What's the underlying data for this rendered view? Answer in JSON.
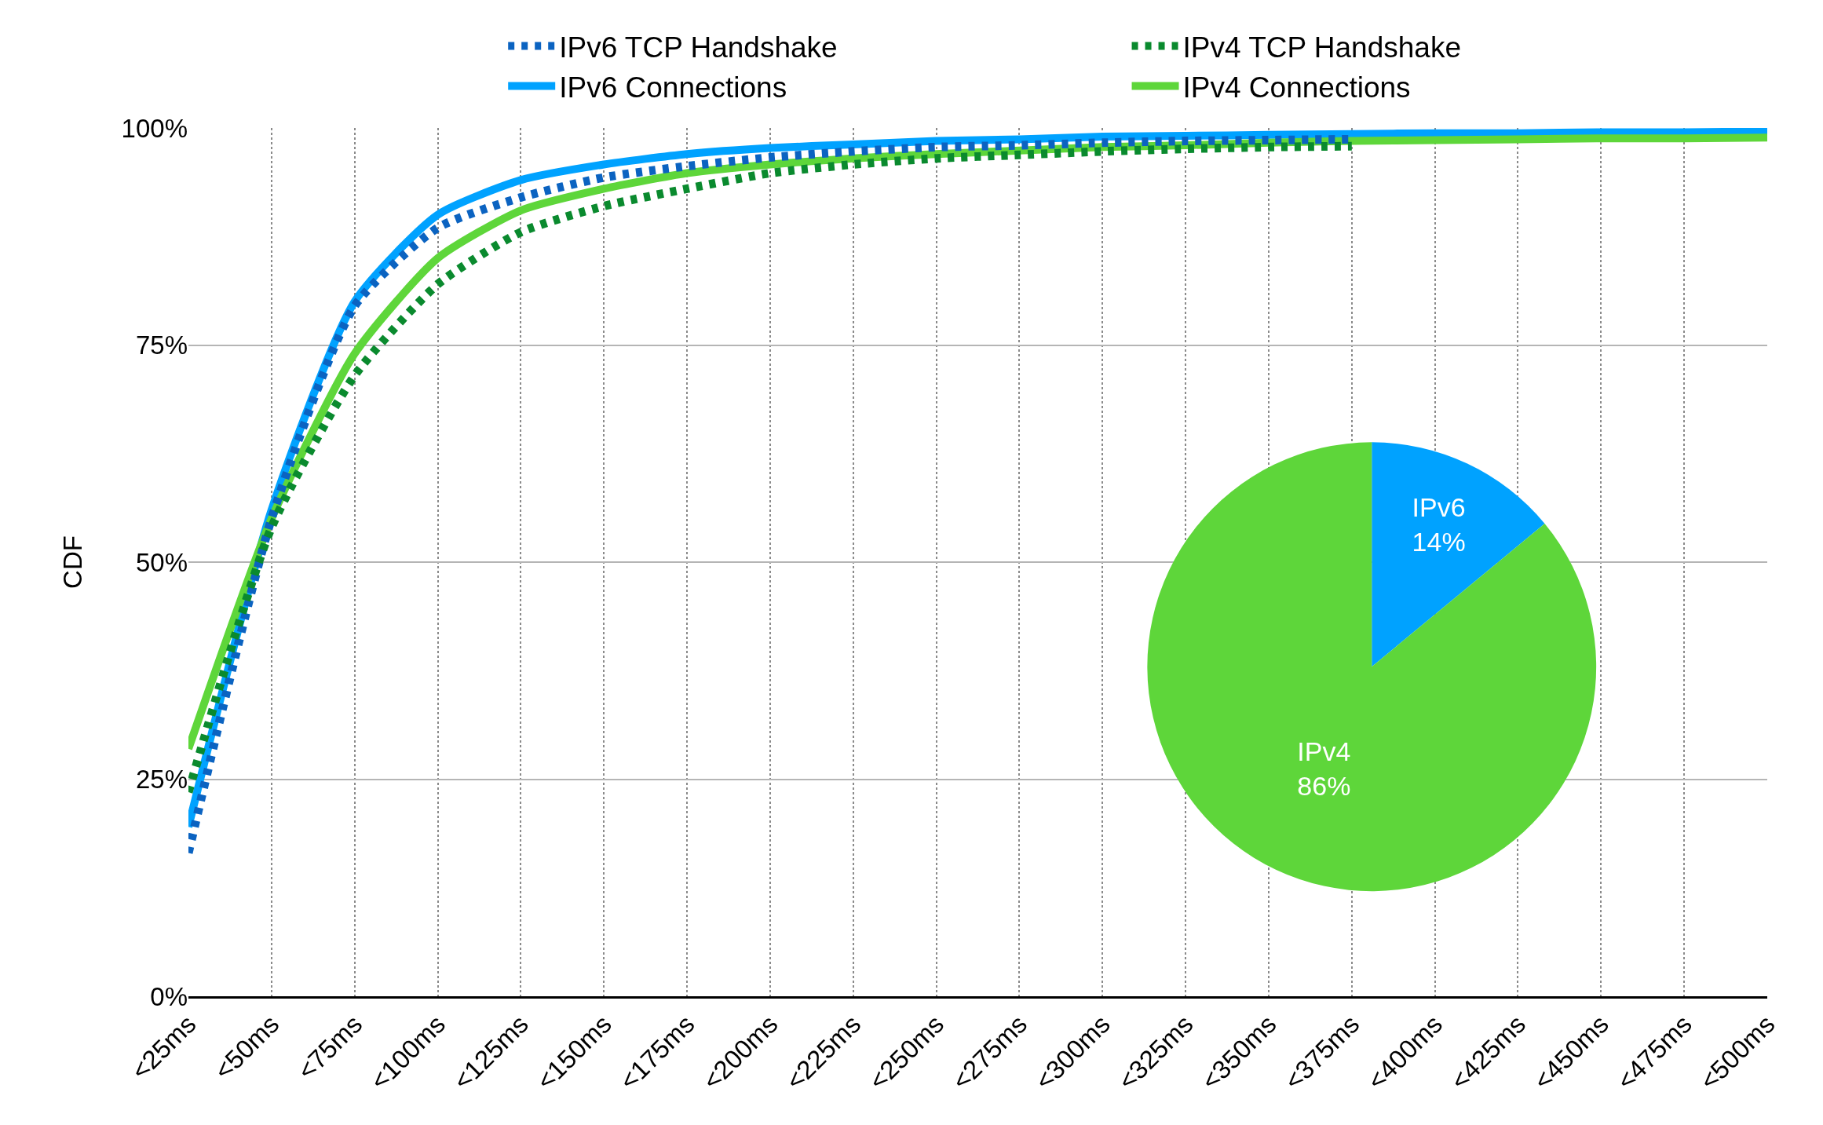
{
  "chart_data": [
    {
      "type": "line",
      "ylabel": "CDF",
      "legend": "top",
      "grid": true,
      "marker": "none",
      "categories": [
        "<25ms",
        "<50ms",
        "<75ms",
        "<100ms",
        "<125ms",
        "<150ms",
        "<175ms",
        "<200ms",
        "<225ms",
        "<250ms",
        "<275ms",
        "<300ms",
        "<325ms",
        "<350ms",
        "<375ms",
        "<400ms",
        "<425ms",
        "<450ms",
        "<475ms",
        "<500ms"
      ],
      "ylim": [
        0,
        100
      ],
      "yticks": [
        {
          "value": 0,
          "label": "0%"
        },
        {
          "value": 25,
          "label": "25%"
        },
        {
          "value": 50,
          "label": "50%"
        },
        {
          "value": 75,
          "label": "75%"
        },
        {
          "value": 100,
          "label": "100%"
        }
      ],
      "series": [
        {
          "name": "IPv6 TCP Handshake",
          "color": "#0b63c1",
          "line_style": "dotted",
          "values": [
            16.5,
            55,
            79.5,
            88.5,
            92,
            94.3,
            95.6,
            96.6,
            97.3,
            97.8,
            98,
            98.3,
            98.5,
            98.6,
            98.7,
            null,
            null,
            null,
            null,
            null
          ]
        },
        {
          "name": "IPv4 TCP Handshake",
          "color": "#0a8a2e",
          "line_style": "dotted",
          "values": [
            23.5,
            54,
            71.5,
            82,
            88,
            91,
            93,
            94.8,
            95.8,
            96.5,
            96.9,
            97.3,
            97.6,
            97.8,
            97.9,
            null,
            null,
            null,
            null,
            null
          ]
        },
        {
          "name": "IPv6 Connections",
          "color": "#00a2ff",
          "line_style": "solid",
          "values": [
            19.5,
            56,
            80,
            90,
            94,
            95.8,
            97,
            97.7,
            98.1,
            98.5,
            98.7,
            99,
            99.1,
            99.2,
            99.3,
            99.4,
            99.4,
            99.5,
            99.5,
            99.6
          ]
        },
        {
          "name": "IPv4 Connections",
          "color": "#5ed63a",
          "line_style": "solid",
          "values": [
            28.5,
            55,
            74,
            85,
            90.5,
            93,
            94.8,
            95.8,
            96.5,
            97,
            97.4,
            97.8,
            98,
            98.3,
            98.5,
            98.6,
            98.7,
            98.8,
            98.8,
            98.9
          ]
        }
      ]
    },
    {
      "type": "pie",
      "categories": [
        "IPv6",
        "IPv4"
      ],
      "values": [
        14,
        86
      ],
      "colors": [
        "#00a2ff",
        "#5ed63a"
      ],
      "value_labels": [
        "14%",
        "86%"
      ]
    }
  ]
}
